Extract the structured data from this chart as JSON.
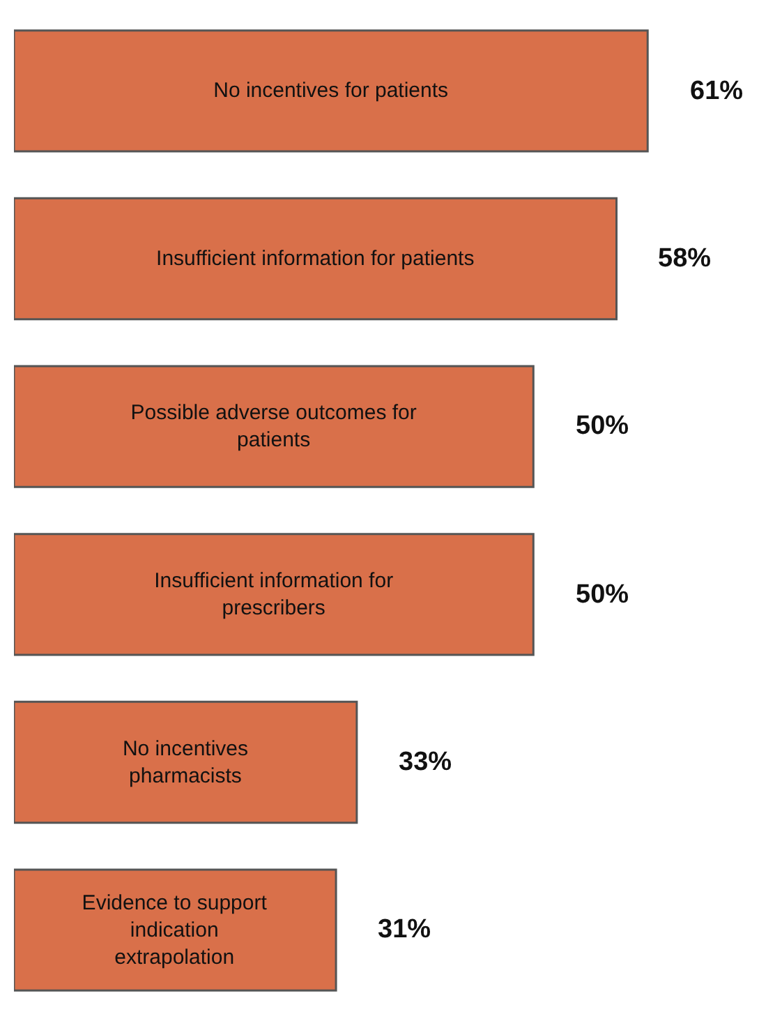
{
  "chart_data": {
    "type": "bar",
    "orientation": "horizontal",
    "categories": [
      "No incentives for patients",
      "Insufficient information for patients",
      "Possible adverse outcomes for patients",
      "Insufficient information for prescribers",
      "No incentives pharmacists",
      "Evidence to support indication extrapolation"
    ],
    "values": [
      61,
      58,
      50,
      50,
      33,
      31
    ],
    "value_labels": [
      "61%",
      "58%",
      "50%",
      "50%",
      "33%",
      "31%"
    ],
    "color": "#d9704a",
    "tick_labels": false
  }
}
